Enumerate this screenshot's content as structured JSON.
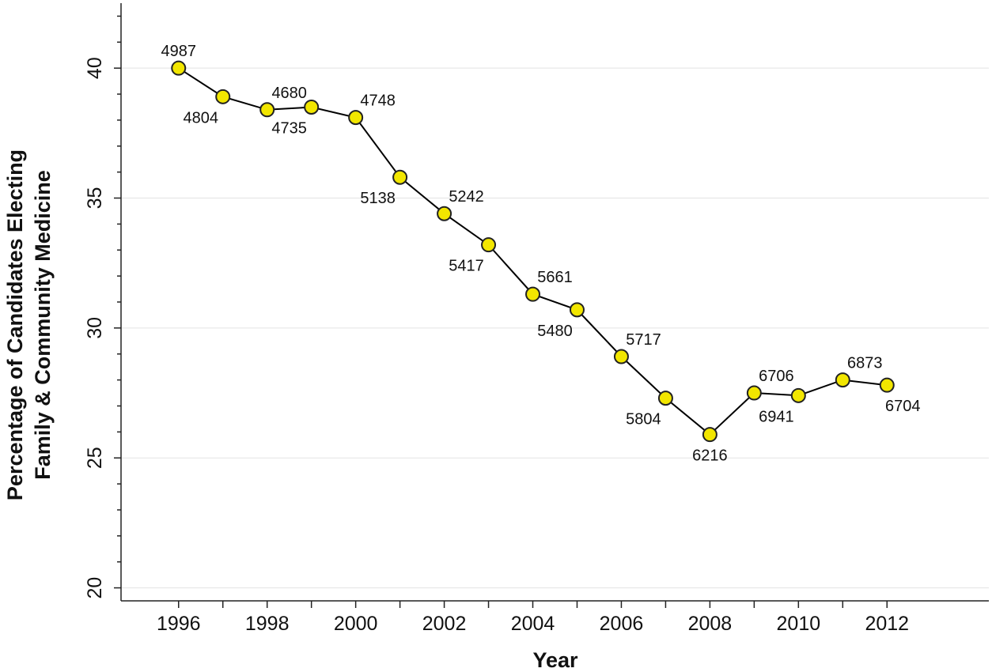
{
  "chart_data": {
    "type": "line",
    "title": "",
    "xlabel": "Year",
    "ylabel_line1": "Percentage of Candidates Electing",
    "ylabel_line2": "Family & Community Medicine",
    "x": [
      1996,
      1997,
      1998,
      1999,
      2000,
      2001,
      2002,
      2003,
      2004,
      2005,
      2006,
      2007,
      2008,
      2009,
      2010,
      2011,
      2012
    ],
    "series": [
      {
        "values": [
          40.0,
          38.9,
          38.4,
          38.5,
          38.1,
          35.8,
          34.4,
          33.2,
          31.3,
          30.7,
          28.9,
          27.3,
          25.9,
          27.5,
          27.4,
          28.0,
          27.8
        ],
        "labels": [
          "4987",
          "4804",
          "4680",
          "4735",
          "4748",
          "5138",
          "5242",
          "5417",
          "5661",
          "5480",
          "5717",
          "5804",
          "6216",
          "6706",
          "6941",
          "6873",
          "6704"
        ],
        "label_pos": [
          "above",
          "below",
          "above",
          "below",
          "above",
          "below",
          "above",
          "below",
          "above",
          "below",
          "above",
          "below",
          "below",
          "above",
          "below",
          "above",
          "below"
        ]
      }
    ],
    "xticks": [
      "1996",
      "1998",
      "2000",
      "2002",
      "2004",
      "2006",
      "2008",
      "2010",
      "2012"
    ],
    "yticks": [
      "20",
      "25",
      "30",
      "35",
      "40"
    ],
    "xlim": [
      1994.7,
      2014.3
    ],
    "ylim": [
      19.5,
      42.5
    ],
    "grid": "horizontal-major",
    "colors": {
      "marker_fill": "#f2e600",
      "marker_edge": "#222222",
      "line": "#000000"
    }
  }
}
